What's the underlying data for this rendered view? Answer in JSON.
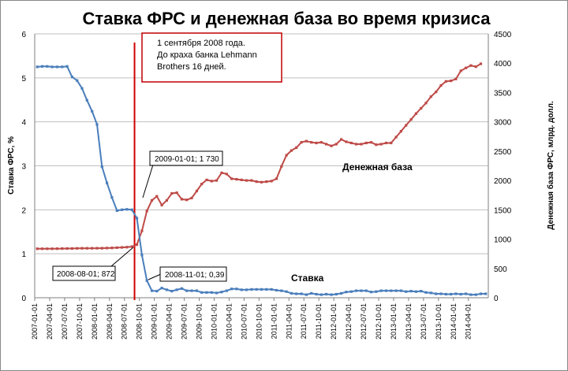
{
  "chart_data": {
    "type": "line",
    "title": "Ставка ФРС и денежная база во время кризиса",
    "y_left": {
      "label": "Ставка ФРС, %",
      "range": [
        0,
        6
      ],
      "ticks": [
        "0",
        "1",
        "2",
        "3",
        "4",
        "5",
        "6"
      ]
    },
    "y_right": {
      "label": "Денежная база ФРС, млрд. долл.",
      "range": [
        0,
        4500
      ],
      "ticks": [
        "0",
        "500",
        "1000",
        "1500",
        "2000",
        "2500",
        "3000",
        "3500",
        "4000",
        "4500"
      ]
    },
    "x_tick_labels": [
      "2007-01-01",
      "2007-04-01",
      "2007-07-01",
      "2007-10-01",
      "2008-01-01",
      "2008-04-01",
      "2008-07-01",
      "2008-10-01",
      "2009-01-01",
      "2009-04-01",
      "2009-07-01",
      "2009-10-01",
      "2010-01-01",
      "2010-04-01",
      "2010-07-01",
      "2010-10-01",
      "2011-01-01",
      "2011-04-01",
      "2011-07-01",
      "2011-10-01",
      "2012-01-01",
      "2012-04-01",
      "2012-07-01",
      "2012-10-01",
      "2013-01-01",
      "2013-04-01",
      "2013-07-01",
      "2013-10-01",
      "2014-01-01",
      "2014-04-01"
    ],
    "grid": true,
    "series": [
      {
        "name": "Ставка",
        "axis": "left",
        "color": "#4a7ebb",
        "values": [
          5.25,
          5.26,
          5.26,
          5.25,
          5.25,
          5.25,
          5.26,
          5.02,
          4.94,
          4.76,
          4.49,
          4.24,
          3.94,
          2.98,
          2.61,
          2.28,
          1.98,
          2.0,
          2.01,
          2.0,
          1.81,
          0.97,
          0.39,
          0.16,
          0.15,
          0.22,
          0.18,
          0.15,
          0.18,
          0.21,
          0.16,
          0.16,
          0.16,
          0.12,
          0.12,
          0.12,
          0.11,
          0.13,
          0.16,
          0.2,
          0.2,
          0.18,
          0.18,
          0.19,
          0.19,
          0.19,
          0.19,
          0.19,
          0.17,
          0.16,
          0.14,
          0.1,
          0.09,
          0.09,
          0.07,
          0.1,
          0.08,
          0.07,
          0.08,
          0.07,
          0.08,
          0.1,
          0.13,
          0.14,
          0.16,
          0.16,
          0.16,
          0.13,
          0.14,
          0.16,
          0.16,
          0.16,
          0.16,
          0.16,
          0.14,
          0.15,
          0.14,
          0.15,
          0.12,
          0.11,
          0.09,
          0.09,
          0.08,
          0.08,
          0.09,
          0.08,
          0.09,
          0.07,
          0.07,
          0.09,
          0.09
        ]
      },
      {
        "name": "Денежная база",
        "axis": "right",
        "color": "#be4b48",
        "values": [
          835,
          835,
          836,
          836,
          837,
          838,
          839,
          840,
          842,
          843,
          843,
          844,
          845,
          845,
          848,
          850,
          855,
          858,
          862,
          872,
          905,
          1140,
          1480,
          1660,
          1730,
          1580,
          1660,
          1780,
          1790,
          1680,
          1670,
          1700,
          1820,
          1940,
          2010,
          1990,
          2000,
          2130,
          2110,
          2030,
          2020,
          2010,
          2000,
          2000,
          1980,
          1970,
          1980,
          1990,
          2030,
          2240,
          2430,
          2510,
          2560,
          2650,
          2670,
          2650,
          2640,
          2650,
          2620,
          2590,
          2620,
          2700,
          2660,
          2640,
          2620,
          2620,
          2640,
          2650,
          2610,
          2620,
          2640,
          2640,
          2740,
          2840,
          2940,
          3040,
          3140,
          3230,
          3320,
          3430,
          3510,
          3620,
          3690,
          3700,
          3730,
          3870,
          3920,
          3960,
          3940,
          3990
        ]
      }
    ],
    "annotations": {
      "event_lines": [
        "1 сентября 2008 года.",
        "До краха банка Lehmann",
        "Brothers 16 дней."
      ],
      "callout_1": "2009-01-01; 1 730",
      "callout_2": "2008-08-01; 872",
      "callout_3": "2008-11-01; 0,39",
      "series_label_base": "Денежная база",
      "series_label_rate": "Ставка"
    },
    "colors": {
      "event_line": "#d00000",
      "event_box": "#c00000"
    }
  }
}
